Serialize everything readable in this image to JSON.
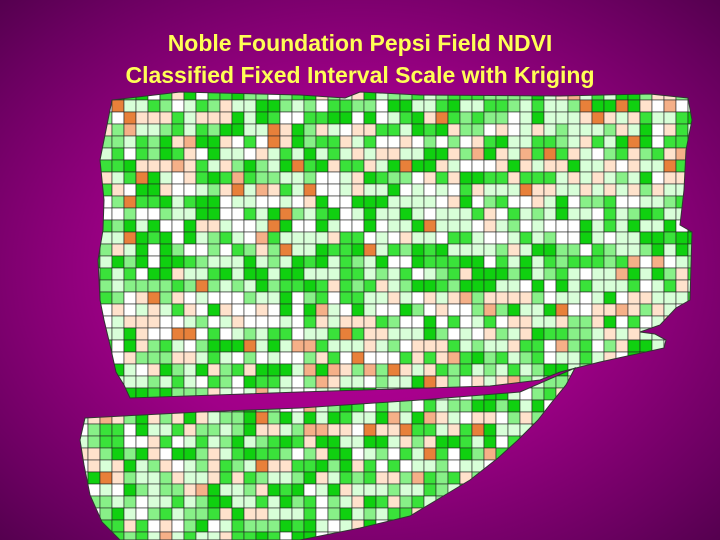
{
  "title": {
    "line1": "Noble Foundation Pepsi Field NDVI",
    "line2": "Classified Fixed Interval Scale with Kriging"
  }
}
